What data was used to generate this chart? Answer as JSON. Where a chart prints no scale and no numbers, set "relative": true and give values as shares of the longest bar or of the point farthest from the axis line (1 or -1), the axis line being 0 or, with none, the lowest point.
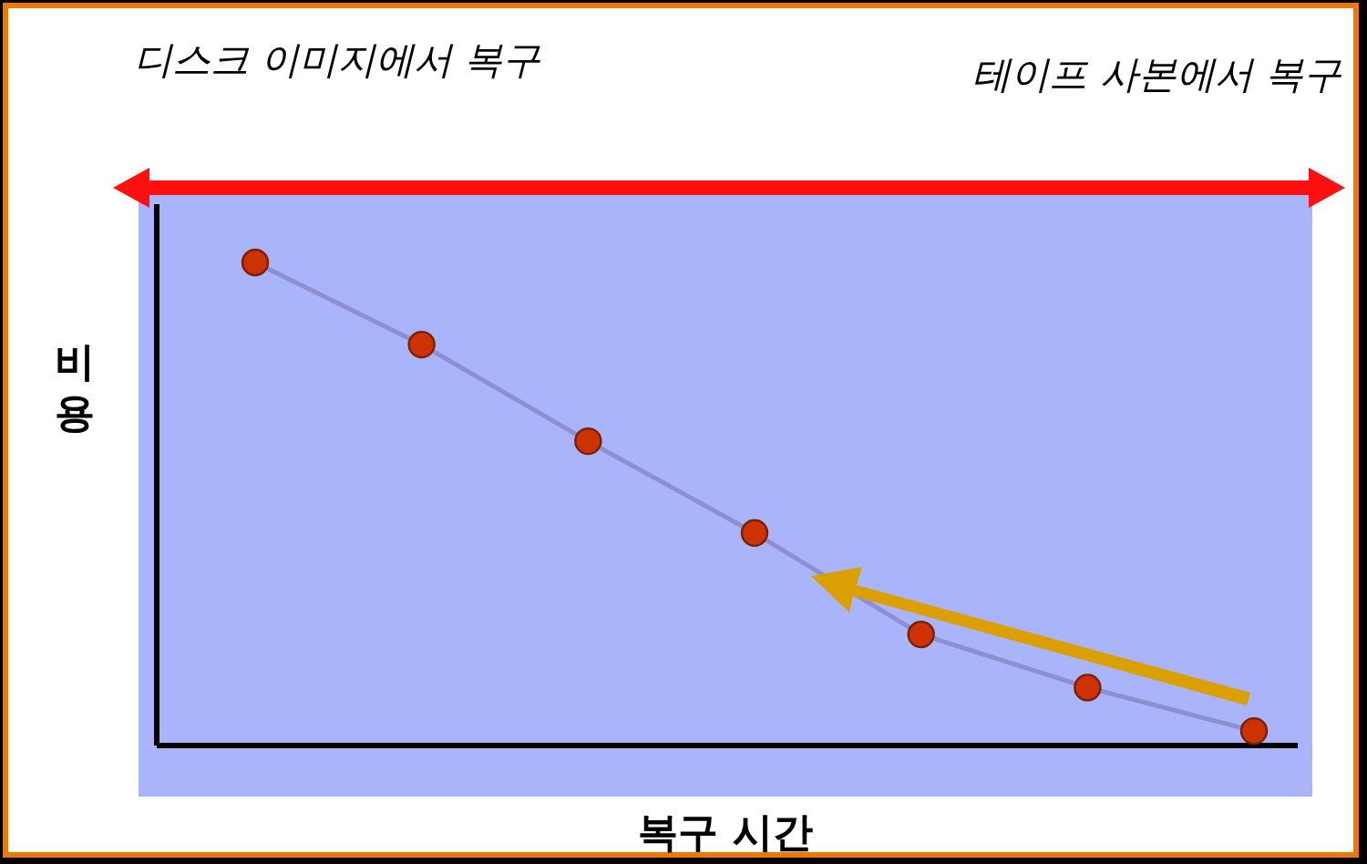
{
  "chart_data": {
    "type": "line",
    "relative": true,
    "xlabel": "복구 시간",
    "ylabel": "비용",
    "annotations": [
      "디스크 이미지에서 복구",
      "테이프 사본에서 복구"
    ],
    "categories": [
      null,
      null,
      null,
      null,
      null,
      null,
      null
    ],
    "marker": "circle",
    "line_style": "solid",
    "series": [
      {
        "color": "#8c8fd0",
        "colors": [
          "#cc3300",
          "#cc3300",
          "#cc3300",
          "#cc3300",
          "#cc3300",
          "#cc3300",
          "#cc3300"
        ],
        "values": [
          1,
          0.83,
          0.63,
          0.44,
          0.23,
          0.12,
          0.03
        ]
      }
    ]
  }
}
